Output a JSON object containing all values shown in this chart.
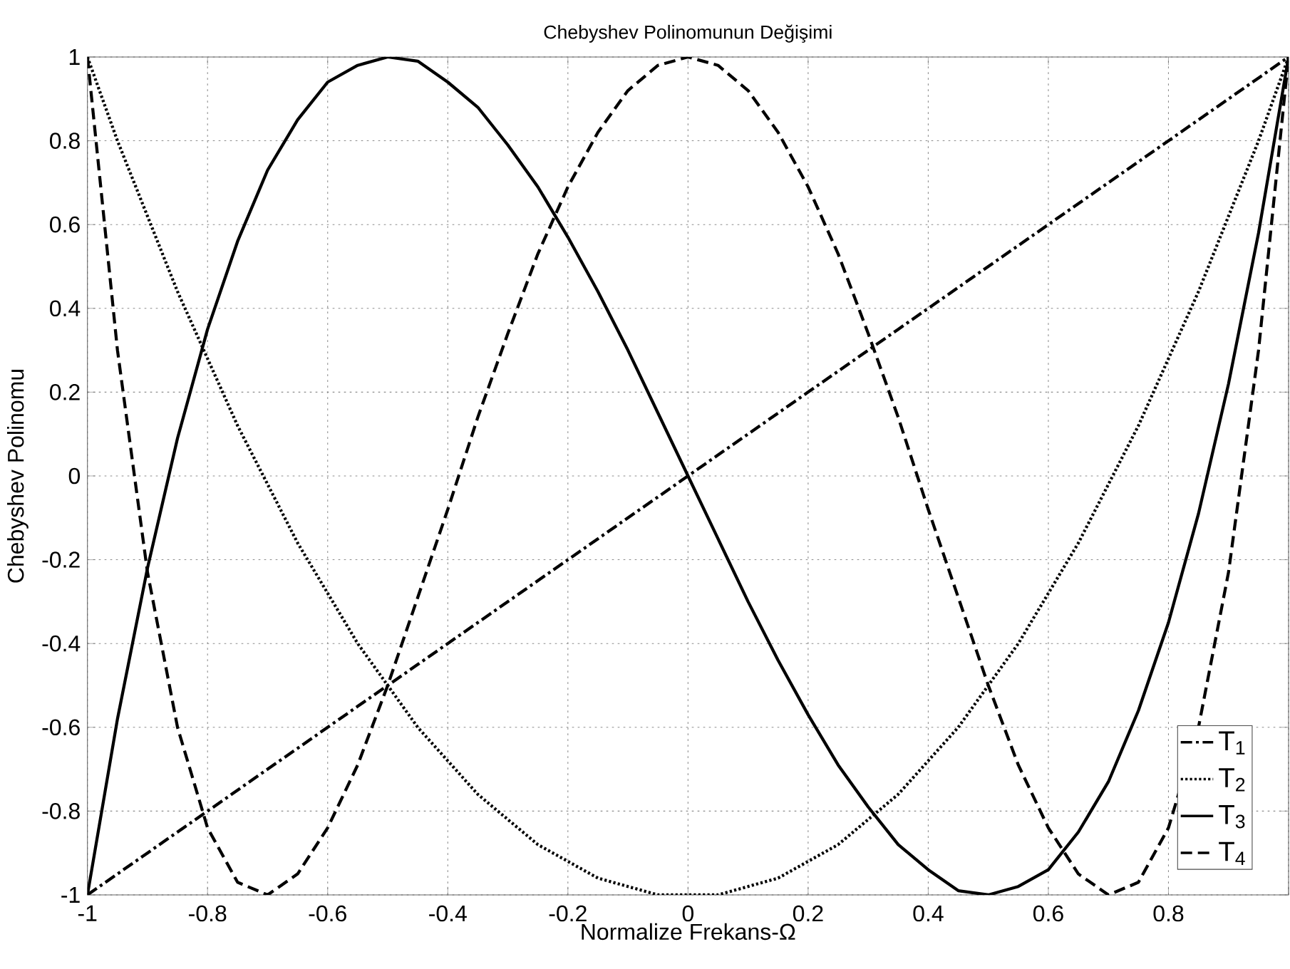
{
  "chart_data": {
    "type": "line",
    "title": "Chebyshev Polinomunun Değişimi",
    "xlabel": "Normalize Frekans-Ω",
    "ylabel": "Chebyshev Polinomu",
    "x": [
      -1,
      -0.95,
      -0.9,
      -0.85,
      -0.8,
      -0.75,
      -0.7,
      -0.65,
      -0.6,
      -0.55,
      -0.5,
      -0.45,
      -0.4,
      -0.35,
      -0.3,
      -0.25,
      -0.2,
      -0.15,
      -0.1,
      -0.05,
      0,
      0.05,
      0.1,
      0.15,
      0.2,
      0.25,
      0.3,
      0.35,
      0.4,
      0.45,
      0.5,
      0.55,
      0.6,
      0.65,
      0.7,
      0.75,
      0.8,
      0.85,
      0.9,
      0.95,
      1
    ],
    "series": [
      {
        "name": "T$_{1}$",
        "color": "#000000",
        "line_style": "dashdot",
        "values": [
          -1,
          -0.95,
          -0.9,
          -0.85,
          -0.8,
          -0.75,
          -0.7,
          -0.65,
          -0.6,
          -0.55,
          -0.5,
          -0.45,
          -0.4,
          -0.35,
          -0.3,
          -0.25,
          -0.2,
          -0.15,
          -0.1,
          -0.05,
          0,
          0.05,
          0.1,
          0.15,
          0.2,
          0.25,
          0.3,
          0.35,
          0.4,
          0.45,
          0.5,
          0.55,
          0.6,
          0.65,
          0.7,
          0.75,
          0.8,
          0.85,
          0.9,
          0.95,
          1
        ]
      },
      {
        "name": "T$_{2}$",
        "color": "#000000",
        "line_style": "dotted",
        "values": [
          1,
          0.8,
          0.62,
          0.44,
          0.28,
          0.12,
          -0.02,
          -0.16,
          -0.28,
          -0.4,
          -0.5,
          -0.6,
          -0.68,
          -0.76,
          -0.82,
          -0.88,
          -0.92,
          -0.96,
          -0.98,
          -1,
          -1,
          -1,
          -0.98,
          -0.96,
          -0.92,
          -0.88,
          -0.82,
          -0.76,
          -0.68,
          -0.6,
          -0.5,
          -0.4,
          -0.28,
          -0.16,
          -0.02,
          0.12,
          0.28,
          0.44,
          0.62,
          0.8,
          1
        ]
      },
      {
        "name": "T$_{3}$",
        "color": "#000000",
        "line_style": "solid",
        "values": [
          -1,
          -0.58,
          -0.22,
          0.09,
          0.35,
          0.56,
          0.73,
          0.85,
          0.94,
          0.98,
          1,
          0.99,
          0.94,
          0.88,
          0.79,
          0.69,
          0.57,
          0.44,
          0.3,
          0.15,
          0,
          -0.15,
          -0.3,
          -0.44,
          -0.57,
          -0.69,
          -0.79,
          -0.88,
          -0.94,
          -0.99,
          -1,
          -0.98,
          -0.94,
          -0.85,
          -0.73,
          -0.56,
          -0.35,
          -0.09,
          0.22,
          0.58,
          1
        ]
      },
      {
        "name": "T$_{4}$",
        "color": "#000000",
        "line_style": "dashed",
        "values": [
          1,
          0.3,
          -0.23,
          -0.6,
          -0.84,
          -0.97,
          -1,
          -0.95,
          -0.84,
          -0.69,
          -0.5,
          -0.29,
          -0.08,
          0.14,
          0.34,
          0.53,
          0.69,
          0.82,
          0.92,
          0.98,
          1,
          0.98,
          0.92,
          0.82,
          0.69,
          0.53,
          0.34,
          0.14,
          -0.08,
          -0.29,
          -0.5,
          -0.69,
          -0.84,
          -0.95,
          -1,
          -0.97,
          -0.84,
          -0.6,
          -0.23,
          0.3,
          1
        ]
      }
    ],
    "xlim": [
      -1,
      1
    ],
    "xticks": [
      -1,
      -0.8,
      -0.6,
      -0.4,
      -0.2,
      0,
      0.2,
      0.4,
      0.6,
      0.8,
      {
        "value": 1,
        "label": null
      }
    ],
    "ylim": [
      -1,
      1
    ],
    "yticks": [
      -1,
      -0.8,
      -0.6,
      -0.4,
      -0.2,
      0,
      0.2,
      0.4,
      0.6,
      0.8,
      1
    ],
    "grid": true,
    "legend": "bottom right",
    "marker": "none"
  }
}
